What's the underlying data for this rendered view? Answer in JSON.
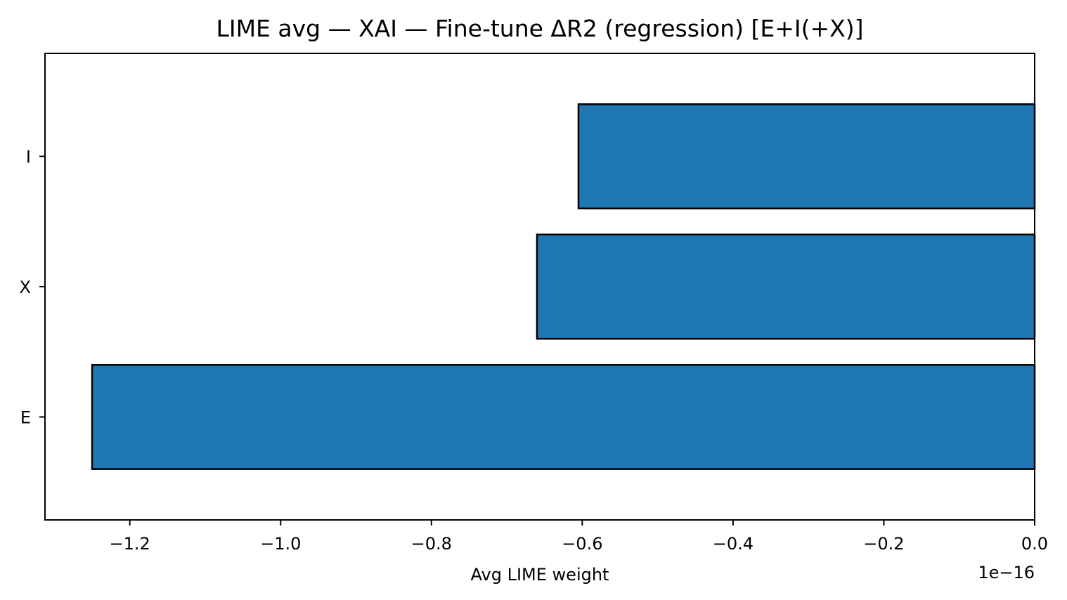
{
  "chart_data": {
    "type": "bar",
    "orientation": "horizontal",
    "title": "LIME avg — XAI — Fine-tune ΔR2  (regression) [E+I(+X)]",
    "xlabel": "Avg LIME weight",
    "ylabel": "",
    "offset_text": "1e−16",
    "categories": [
      "E",
      "X",
      "I"
    ],
    "values": [
      -1.25,
      -0.66,
      -0.605
    ],
    "xlim": [
      -1.3125,
      0.0
    ],
    "x_ticks": [
      -1.2,
      -1.0,
      -0.8,
      -0.6,
      -0.4,
      -0.2,
      0.0
    ],
    "x_tick_labels": [
      "−1.2",
      "−1.0",
      "−0.8",
      "−0.6",
      "−0.4",
      "−0.2",
      "0.0"
    ],
    "bar_color": "#1f77b4",
    "edge_color": "#000000",
    "grid": false,
    "legend": "none"
  }
}
